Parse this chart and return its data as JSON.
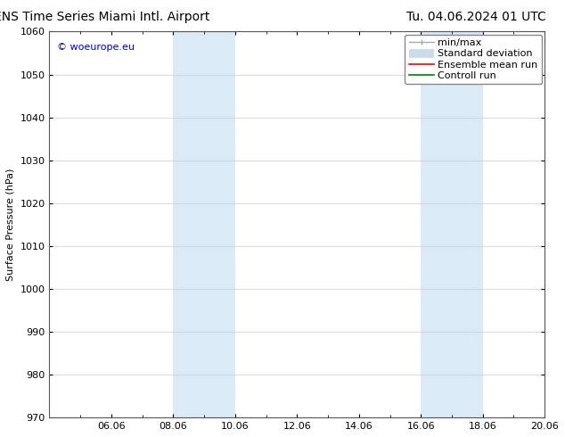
{
  "title_left": "ENS Time Series Miami Intl. Airport",
  "title_right": "Tu. 04.06.2024 01 UTC",
  "ylabel": "Surface Pressure (hPa)",
  "ylim": [
    970,
    1060
  ],
  "yticks": [
    970,
    980,
    990,
    1000,
    1010,
    1020,
    1030,
    1040,
    1050,
    1060
  ],
  "xtick_labels": [
    "06.06",
    "08.06",
    "10.06",
    "12.06",
    "14.06",
    "16.06",
    "18.06",
    "20.06"
  ],
  "xtick_positions": [
    2,
    4,
    6,
    8,
    10,
    12,
    14,
    16
  ],
  "xlim": [
    0,
    16
  ],
  "shaded_bands": [
    {
      "x_start": 4,
      "x_end": 6
    },
    {
      "x_start": 12,
      "x_end": 14
    }
  ],
  "shaded_color": "#daeaf7",
  "watermark_text": "© woeurope.eu",
  "watermark_color": "#0000cc",
  "legend_labels": [
    "min/max",
    "Standard deviation",
    "Ensemble mean run",
    "Controll run"
  ],
  "legend_colors_line": [
    "#aaaaaa",
    "#c8dcee",
    "#ff0000",
    "#008000"
  ],
  "bg_color": "#ffffff",
  "plot_bg_color": "#ffffff",
  "title_fontsize": 10,
  "axis_label_fontsize": 8,
  "tick_fontsize": 8,
  "legend_fontsize": 8,
  "watermark_fontsize": 8
}
